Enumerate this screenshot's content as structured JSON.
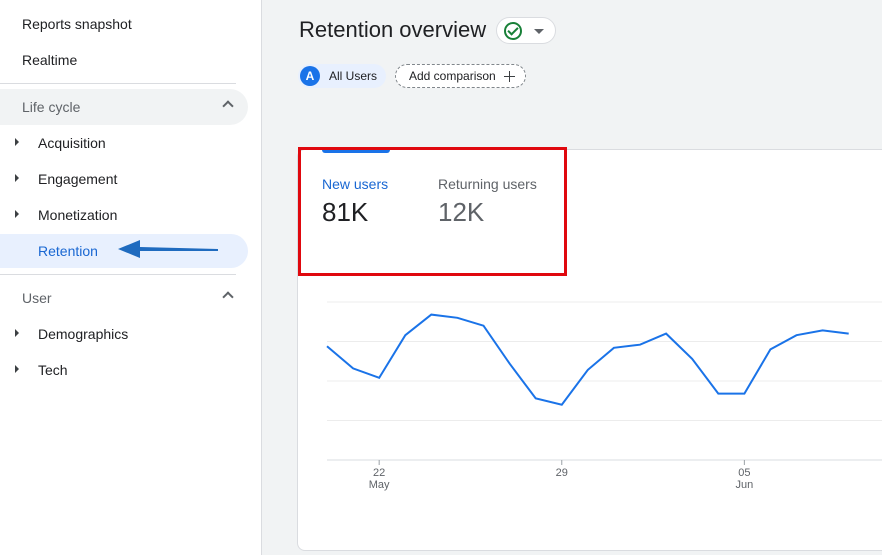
{
  "sidebar": {
    "reports_snapshot": "Reports snapshot",
    "realtime": "Realtime",
    "lifecycle": {
      "title": "Life cycle",
      "items": [
        "Acquisition",
        "Engagement",
        "Monetization",
        "Retention"
      ]
    },
    "user": {
      "title": "User",
      "items": [
        "Demographics",
        "Tech"
      ]
    }
  },
  "header": {
    "title": "Retention overview",
    "status_icon": "check-circle-icon"
  },
  "segments": {
    "chip_letter": "A",
    "chip_label": "All Users",
    "add_comparison": "Add comparison"
  },
  "card": {
    "metrics": [
      {
        "label": "New users",
        "value": "81K"
      },
      {
        "label": "Returning users",
        "value": "12K"
      }
    ]
  },
  "colors": {
    "accent": "#1a73e8",
    "highlight": "#e0080e",
    "arrow": "#1f6bbf"
  },
  "chart_data": {
    "type": "line",
    "series": [
      {
        "values": [
          72,
          58,
          52,
          79,
          92,
          90,
          85,
          61,
          39,
          35,
          57,
          71,
          73,
          80,
          64,
          42,
          42,
          70,
          79,
          82,
          80
        ]
      }
    ],
    "xticks": [
      {
        "index": 2,
        "day": "22",
        "month": "May"
      },
      {
        "index": 9,
        "day": "29",
        "month": ""
      },
      {
        "index": 16,
        "day": "05",
        "month": "Jun"
      }
    ],
    "grid": true
  }
}
